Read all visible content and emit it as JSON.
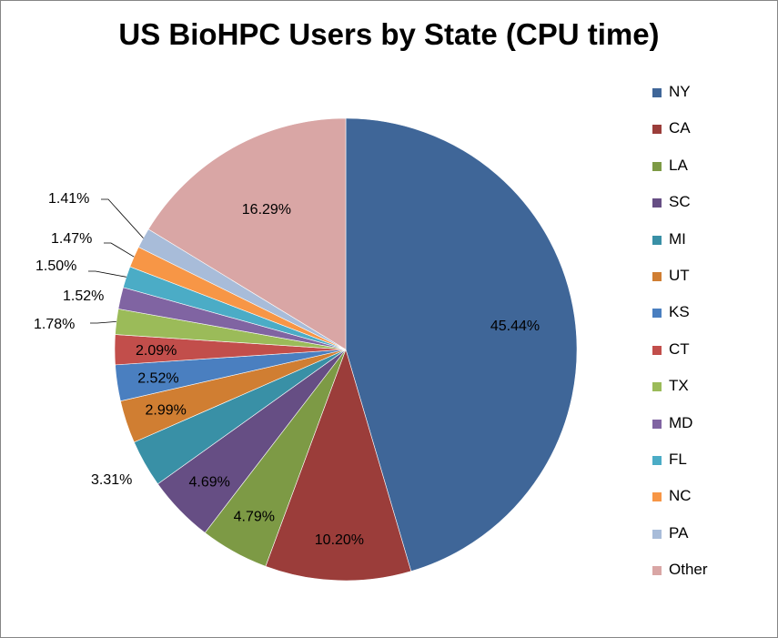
{
  "chart_data": {
    "type": "pie",
    "title": "US BioHPC Users by State (CPU time)",
    "legend_position": "right",
    "slices": [
      {
        "label": "NY",
        "value": 45.44,
        "value_label": "45.44%",
        "color": "#3F6698"
      },
      {
        "label": "CA",
        "value": 10.2,
        "value_label": "10.20%",
        "color": "#9B3D3A"
      },
      {
        "label": "LA",
        "value": 4.79,
        "value_label": "4.79%",
        "color": "#7D9A45"
      },
      {
        "label": "SC",
        "value": 4.69,
        "value_label": "4.69%",
        "color": "#664E84"
      },
      {
        "label": "MI",
        "value": 3.31,
        "value_label": "3.31%",
        "color": "#3990A6"
      },
      {
        "label": "UT",
        "value": 2.99,
        "value_label": "2.99%",
        "color": "#D07E32"
      },
      {
        "label": "KS",
        "value": 2.52,
        "value_label": "2.52%",
        "color": "#4A7FC0"
      },
      {
        "label": "CT",
        "value": 2.09,
        "value_label": "2.09%",
        "color": "#C24E4B"
      },
      {
        "label": "TX",
        "value": 1.78,
        "value_label": "1.78%",
        "color": "#9BBB59"
      },
      {
        "label": "MD",
        "value": 1.52,
        "value_label": "1.52%",
        "color": "#8064A2"
      },
      {
        "label": "FL",
        "value": 1.5,
        "value_label": "1.50%",
        "color": "#4BACC6"
      },
      {
        "label": "NC",
        "value": 1.47,
        "value_label": "1.47%",
        "color": "#F79646"
      },
      {
        "label": "PA",
        "value": 1.41,
        "value_label": "1.41%",
        "color": "#A8BCD9"
      },
      {
        "label": "Other",
        "value": 16.29,
        "value_label": "16.29%",
        "color": "#D9A6A5"
      }
    ]
  }
}
